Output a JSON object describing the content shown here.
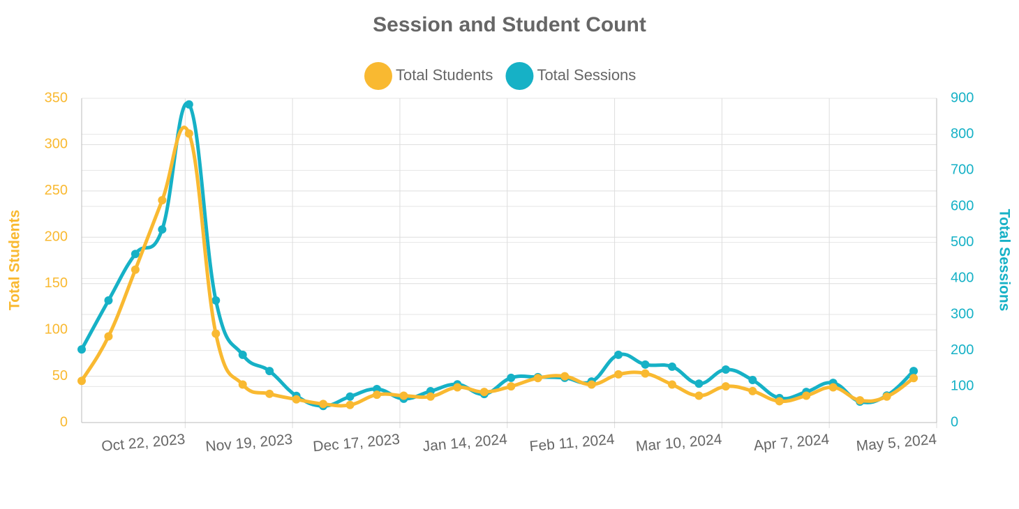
{
  "chart_data": {
    "type": "line",
    "title": "Session and Student Count",
    "x": [
      "2023-09-25",
      "2023-10-02",
      "2023-10-09",
      "2023-10-16",
      "2023-10-23",
      "2023-10-30",
      "2023-11-06",
      "2023-11-13",
      "2023-11-20",
      "2023-11-27",
      "2023-12-04",
      "2023-12-11",
      "2023-12-18",
      "2023-12-25",
      "2024-01-01",
      "2024-01-08",
      "2024-01-15",
      "2024-01-22",
      "2024-01-29",
      "2024-02-05",
      "2024-02-12",
      "2024-02-19",
      "2024-02-26",
      "2024-03-04",
      "2024-03-11",
      "2024-03-18",
      "2024-03-25",
      "2024-04-01",
      "2024-04-08",
      "2024-04-15",
      "2024-04-22",
      "2024-04-29"
    ],
    "xlim": [
      "2023-09-25",
      "2024-05-05"
    ],
    "xticks": [
      {
        "value": "2023-10-22",
        "label": "Oct 22, 2023"
      },
      {
        "value": "2023-11-19",
        "label": "Nov 19, 2023"
      },
      {
        "value": "2023-12-17",
        "label": "Dec 17, 2023"
      },
      {
        "value": "2024-01-14",
        "label": "Jan 14, 2024"
      },
      {
        "value": "2024-02-11",
        "label": "Feb 11, 2024"
      },
      {
        "value": "2024-03-10",
        "label": "Mar 10, 2024"
      },
      {
        "value": "2024-04-07",
        "label": "Apr 7, 2024"
      },
      {
        "value": "2024-05-05",
        "label": "May 5, 2024"
      }
    ],
    "ylabel": "Total Students",
    "y2label": "Total Sessions",
    "ylim": [
      0,
      350
    ],
    "yticks": [
      0,
      50,
      100,
      150,
      200,
      250,
      300,
      350
    ],
    "y2lim": [
      0,
      900
    ],
    "y2ticks": [
      0,
      100,
      200,
      300,
      400,
      500,
      600,
      700,
      800,
      900
    ],
    "grid": true,
    "legend": "top",
    "series": [
      {
        "name": "Total Students",
        "color": "#f9b931",
        "axis": "y",
        "values": [
          45,
          93,
          165,
          240,
          312,
          96,
          41,
          31,
          25,
          20,
          19,
          30,
          29,
          28,
          38,
          33,
          39,
          48,
          50,
          41,
          52,
          53,
          41,
          29,
          39,
          34,
          23,
          29,
          38,
          24,
          28,
          48
        ]
      },
      {
        "name": "Total Sessions",
        "color": "#16b1c6",
        "axis": "y2",
        "values": [
          203,
          339,
          468,
          536,
          883,
          339,
          188,
          143,
          74,
          46,
          72,
          93,
          66,
          87,
          106,
          79,
          124,
          126,
          124,
          114,
          188,
          161,
          155,
          108,
          147,
          118,
          68,
          85,
          110,
          58,
          75,
          143
        ]
      }
    ]
  }
}
